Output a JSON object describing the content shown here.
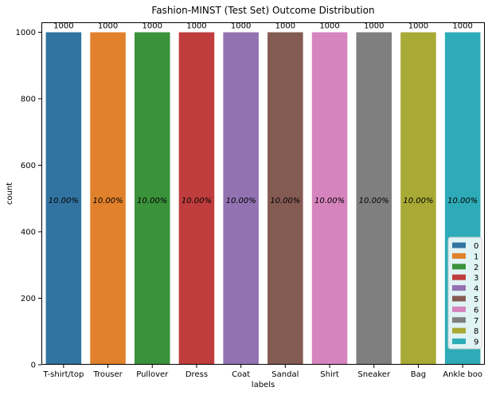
{
  "chart_data": {
    "type": "bar",
    "title": "Fashion-MINST (Test Set) Outcome Distribution",
    "xlabel": "labels",
    "ylabel": "count",
    "categories": [
      "T-shirt/top",
      "Trouser",
      "Pullover",
      "Dress",
      "Coat",
      "Sandal",
      "Shirt",
      "Sneaker",
      "Bag",
      "Ankle boo"
    ],
    "values": [
      1000,
      1000,
      1000,
      1000,
      1000,
      1000,
      1000,
      1000,
      1000,
      1000
    ],
    "value_labels": [
      "1000",
      "1000",
      "1000",
      "1000",
      "1000",
      "1000",
      "1000",
      "1000",
      "1000",
      "1000"
    ],
    "percent_labels": [
      "10.00%",
      "10.00%",
      "10.00%",
      "10.00%",
      "10.00%",
      "10.00%",
      "10.00%",
      "10.00%",
      "10.00%",
      "10.00%"
    ],
    "colors": [
      "#3274a1",
      "#e1812c",
      "#3a923a",
      "#c03d3e",
      "#9372b2",
      "#845b53",
      "#d684bd",
      "#7f7f7f",
      "#a9aa35",
      "#2eabb8"
    ],
    "ylim": [
      0,
      1030
    ],
    "yticks": [
      0,
      200,
      400,
      600,
      800,
      1000
    ],
    "grid": false,
    "legend": {
      "position": "bottom-right",
      "entries": [
        "0",
        "1",
        "2",
        "3",
        "4",
        "5",
        "6",
        "7",
        "8",
        "9"
      ]
    }
  }
}
